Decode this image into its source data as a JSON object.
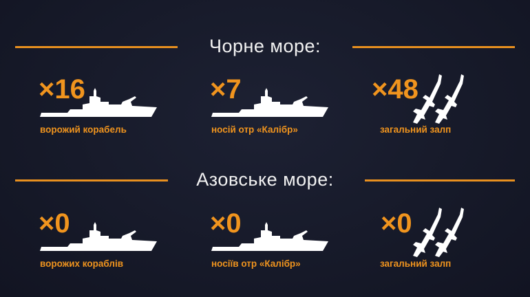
{
  "sections": [
    {
      "title": "Чорне море:",
      "items": [
        {
          "count": "×16",
          "label": "ворожий корабель",
          "icon": "warship-icon"
        },
        {
          "count": "×7",
          "label": "носій отр «Калібр»",
          "icon": "warship-icon"
        },
        {
          "count": "×48",
          "label": "загальний залп",
          "icon": "missiles-icon"
        }
      ]
    },
    {
      "title": "Азовське море:",
      "items": [
        {
          "count": "×0",
          "label": "ворожих кораблів",
          "icon": "warship-icon"
        },
        {
          "count": "×0",
          "label": "носіїв отр «Калібр»",
          "icon": "warship-icon"
        },
        {
          "count": "×0",
          "label": "загальний залп",
          "icon": "missiles-icon"
        }
      ]
    }
  ],
  "colors": {
    "accent": "#f0941e",
    "background": "#171a2b",
    "text": "#f2f2f2"
  }
}
